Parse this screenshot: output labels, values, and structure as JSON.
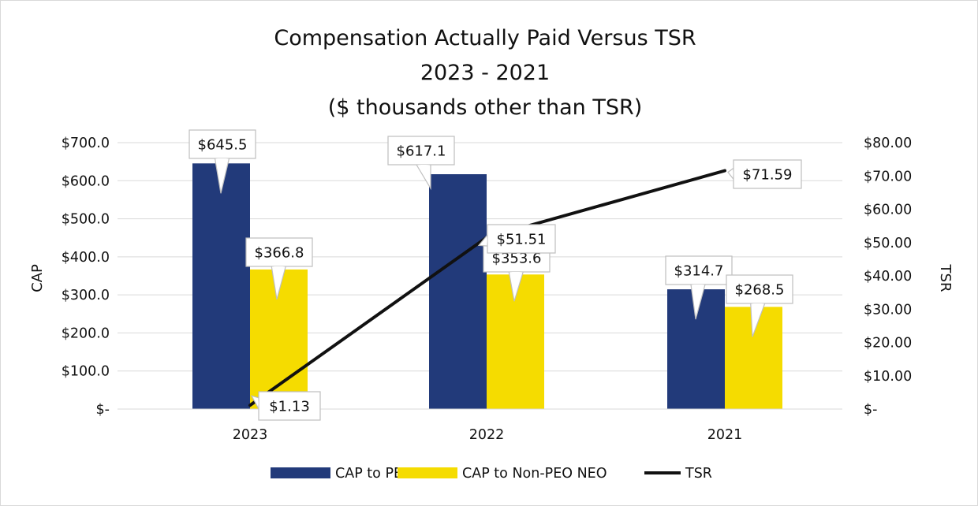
{
  "chart_data": {
    "type": "bar",
    "title": [
      "Compensation Actually Paid Versus TSR",
      "2023 - 2021",
      "($ thousands other than TSR)"
    ],
    "categories": [
      "2023",
      "2022",
      "2021"
    ],
    "series": [
      {
        "name": "CAP to PEO",
        "type": "bar",
        "axis": "left",
        "color": "#223a7a",
        "values": [
          645.5,
          617.1,
          314.7
        ],
        "labels": [
          "$645.5",
          "$617.1",
          "$314.7"
        ]
      },
      {
        "name": "CAP to Non-PEO NEO",
        "type": "bar",
        "axis": "left",
        "color": "#f5dc00",
        "values": [
          366.8,
          353.6,
          268.5
        ],
        "labels": [
          "$366.8",
          "$353.6",
          "$268.5"
        ]
      },
      {
        "name": "TSR",
        "type": "line",
        "axis": "right",
        "color": "#111111",
        "values": [
          1.13,
          51.51,
          71.59
        ],
        "labels": [
          "$1.13",
          "$51.51",
          "$71.59"
        ]
      }
    ],
    "ylabel": "CAP",
    "y2label": "TSR",
    "ylim": [
      0,
      700
    ],
    "y2lim": [
      0,
      80
    ],
    "yticks": [
      0,
      100,
      200,
      300,
      400,
      500,
      600,
      700
    ],
    "ytick_labels": [
      "$-",
      "$100.0",
      "$200.0",
      "$300.0",
      "$400.0",
      "$500.0",
      "$600.0",
      "$700.0"
    ],
    "y2ticks": [
      0,
      10,
      20,
      30,
      40,
      50,
      60,
      70,
      80
    ],
    "y2tick_labels": [
      "$-",
      "$10.00",
      "$20.00",
      "$30.00",
      "$40.00",
      "$50.00",
      "$60.00",
      "$70.00",
      "$80.00"
    ],
    "grid": true,
    "legend_position": "bottom"
  }
}
